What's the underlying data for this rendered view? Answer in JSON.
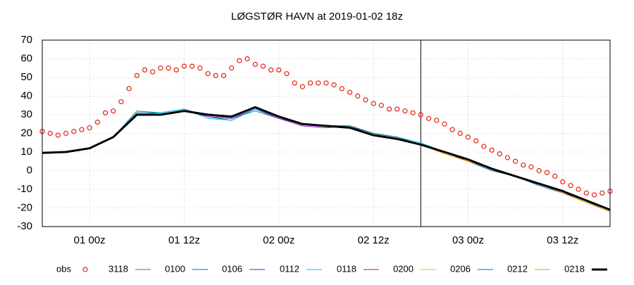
{
  "chart_data": {
    "type": "line",
    "title": "LØGSTØR HAVN at 2019-01-02 18z",
    "xlim": [
      0,
      72
    ],
    "xticks": [
      {
        "value": 6,
        "label": "01 00z"
      },
      {
        "value": 18,
        "label": "01 12z"
      },
      {
        "value": 30,
        "label": "02 00z"
      },
      {
        "value": 42,
        "label": "02 12z"
      },
      {
        "value": 54,
        "label": "03 00z"
      },
      {
        "value": 66,
        "label": "03 12z"
      }
    ],
    "ylim": [
      -30,
      70
    ],
    "yticks": [
      -30,
      -20,
      -10,
      0,
      10,
      20,
      30,
      40,
      50,
      60,
      70
    ],
    "grid": true,
    "vline_x": 48,
    "legend": "bottom",
    "series": [
      {
        "name": "obs",
        "style": "points",
        "color": "#e51e10",
        "x": [
          0,
          1,
          2,
          3,
          4,
          5,
          6,
          7,
          8,
          9,
          10,
          11,
          12,
          13,
          14,
          15,
          16,
          17,
          18,
          19,
          20,
          21,
          22,
          23,
          24,
          25,
          26,
          27,
          28,
          29,
          30,
          31,
          32,
          33,
          34,
          35,
          36,
          37,
          38,
          39,
          40,
          41,
          42,
          43,
          44,
          45,
          46,
          47,
          48,
          49,
          50,
          51,
          52,
          53,
          54,
          55,
          56,
          57,
          58,
          59,
          60,
          61,
          62,
          63,
          64,
          65,
          66,
          67,
          68,
          69,
          70,
          71,
          72
        ],
        "values": [
          21,
          20,
          19,
          20,
          21,
          22,
          23,
          26,
          31,
          32,
          37,
          44,
          51,
          54,
          53,
          55,
          55,
          54,
          56,
          56,
          55,
          52,
          51,
          51,
          55,
          59,
          60,
          57,
          56,
          54,
          54,
          52,
          47,
          45,
          47,
          47,
          47,
          46,
          44,
          42,
          40,
          38,
          36,
          35,
          33,
          33,
          32,
          31,
          30,
          28,
          27,
          25,
          22,
          20,
          18,
          16,
          13,
          11,
          9,
          7,
          5,
          3,
          2,
          0,
          -1,
          -3,
          -6,
          -8,
          -10,
          -12,
          -13,
          -12,
          -11
        ]
      },
      {
        "name": "3118",
        "style": "line",
        "color": "#009e73",
        "width": 1,
        "x": [
          0,
          3,
          6,
          9,
          12,
          15,
          18,
          21,
          24,
          27,
          30,
          33,
          36,
          39,
          42,
          45,
          48,
          51,
          54,
          57,
          60,
          63,
          66,
          69,
          72
        ],
        "values": [
          9.5,
          10,
          12,
          18,
          32,
          31,
          33,
          29,
          28,
          32,
          28,
          25,
          24,
          24,
          20,
          17,
          14,
          10,
          5,
          1,
          -3,
          -7,
          -12,
          -17,
          -22
        ]
      },
      {
        "name": "0100",
        "style": "line",
        "color": "#0072b2",
        "width": 1,
        "x": [
          0,
          3,
          6,
          9,
          12,
          15,
          18,
          21,
          24,
          27,
          30,
          33,
          36,
          39,
          42,
          45,
          48,
          51,
          54,
          57,
          60,
          63,
          66,
          69,
          72
        ],
        "values": [
          9.5,
          10,
          12,
          18,
          31,
          31,
          33,
          29,
          27,
          33,
          29,
          25,
          24,
          24,
          20,
          17,
          14,
          10,
          5,
          0,
          -3,
          -8,
          -12,
          -17,
          -21
        ]
      },
      {
        "name": "0106",
        "style": "line",
        "color": "#9400d3",
        "width": 1,
        "x": [
          0,
          3,
          6,
          9,
          12,
          15,
          18,
          21,
          24,
          27,
          30,
          33,
          36,
          39,
          42,
          45,
          48,
          51,
          54,
          57,
          60,
          63,
          66,
          69,
          72
        ],
        "values": [
          9.5,
          10,
          12,
          18,
          30,
          30,
          32,
          29,
          28,
          33,
          28,
          24,
          23,
          24,
          19,
          17,
          14,
          10,
          5,
          1,
          -3,
          -7,
          -12,
          -16,
          -21
        ]
      },
      {
        "name": "0112",
        "style": "line",
        "color": "#00c0ff",
        "width": 1,
        "x": [
          0,
          3,
          6,
          9,
          12,
          15,
          18,
          21,
          24,
          27,
          30,
          33,
          36,
          39,
          42,
          45,
          48,
          51,
          54,
          57,
          60,
          63,
          66,
          69,
          72
        ],
        "values": [
          9.5,
          10,
          12,
          18,
          30,
          31,
          33,
          28,
          27,
          33,
          29,
          25,
          24,
          24,
          20,
          18,
          15,
          10,
          6,
          1,
          -3,
          -7,
          -11,
          -16,
          -21
        ]
      },
      {
        "name": "0118",
        "style": "line",
        "color": "#a0301e",
        "width": 1,
        "x": [
          0,
          3,
          6,
          9,
          12,
          15,
          18,
          21,
          24,
          27,
          30,
          33,
          36,
          39,
          42,
          45,
          48,
          51,
          54,
          57,
          60,
          63,
          66,
          69,
          72
        ],
        "values": [
          9.5,
          10,
          12,
          18,
          30,
          30,
          32,
          30,
          29,
          34,
          29,
          25,
          24,
          23,
          19,
          17,
          14,
          10,
          6,
          1,
          -3,
          -7,
          -11,
          -16,
          -21
        ]
      },
      {
        "name": "0200",
        "style": "line",
        "color": "#e6c000",
        "width": 1,
        "x": [
          0,
          3,
          6,
          9,
          12,
          15,
          18,
          21,
          24,
          27,
          30,
          33,
          36,
          39,
          42,
          45,
          48,
          51,
          54,
          57,
          60,
          63,
          66,
          69,
          72
        ],
        "values": [
          9.5,
          10,
          12,
          18,
          30,
          30,
          32,
          30,
          29,
          34,
          29,
          25,
          24,
          24,
          20,
          17,
          14,
          9,
          5,
          1,
          -3,
          -7,
          -11,
          -17,
          -22
        ]
      },
      {
        "name": "0206",
        "style": "line",
        "color": "#0072b2",
        "width": 1,
        "x": [
          0,
          3,
          6,
          9,
          12,
          15,
          18,
          21,
          24,
          27,
          30,
          33,
          36,
          39,
          42,
          45,
          48,
          51,
          54,
          57,
          60,
          63,
          66,
          69,
          72
        ],
        "values": [
          9.5,
          10,
          12,
          18,
          30,
          30,
          32,
          30,
          29,
          34,
          29,
          25,
          24,
          24,
          20,
          18,
          14,
          10,
          6,
          1,
          -3,
          -7,
          -11,
          -16,
          -21
        ]
      },
      {
        "name": "0212",
        "style": "line",
        "color": "#e69f00",
        "width": 1,
        "x": [
          0,
          3,
          6,
          9,
          12,
          15,
          18,
          21,
          24,
          27,
          30,
          33,
          36,
          39,
          42,
          45,
          48,
          51,
          54,
          57,
          60,
          63,
          66,
          69,
          72
        ],
        "values": [
          9.5,
          10,
          12,
          18,
          30,
          30,
          32,
          30,
          29,
          34,
          29,
          25,
          24,
          23,
          19,
          17,
          14,
          9,
          5,
          1,
          -3,
          -7,
          -12,
          -17,
          -22
        ]
      },
      {
        "name": "0218",
        "style": "line",
        "color": "#000000",
        "width": 3,
        "x": [
          0,
          3,
          6,
          9,
          12,
          15,
          18,
          21,
          24,
          27,
          30,
          33,
          36,
          39,
          42,
          45,
          48,
          51,
          54,
          57,
          60,
          63,
          66,
          69,
          72
        ],
        "values": [
          9.5,
          10,
          12,
          18,
          30,
          30,
          32,
          30,
          29,
          34,
          29,
          25,
          24,
          23,
          19,
          17,
          14,
          10,
          6,
          1,
          -3,
          -7,
          -11,
          -16,
          -21
        ]
      }
    ]
  }
}
